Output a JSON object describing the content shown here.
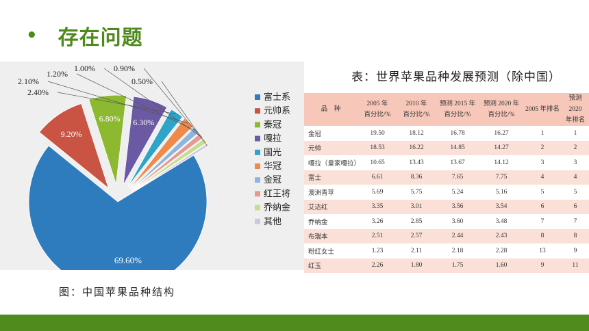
{
  "header": {
    "bullet": "•",
    "title": "存在问题"
  },
  "figure_caption": "图：中国苹果品种结构",
  "table_caption": "表：世界苹果品种发展预测（除中国）",
  "colors": {
    "title_green": "#4e8a1b",
    "footer_green": "#4f8b1d",
    "table_header_bg": "#f7c7ba",
    "table_alt_row_bg": "#fbe0d8"
  },
  "chart_data": {
    "type": "pie",
    "title": "",
    "legend_position": "right",
    "slices": [
      {
        "name": "富士系",
        "value": 69.6,
        "label": "69.60%",
        "color": "#2e7bbd"
      },
      {
        "name": "元帅系",
        "value": 9.2,
        "label": "9.20%",
        "color": "#c95443"
      },
      {
        "name": "秦冠",
        "value": 6.8,
        "label": "6.80%",
        "color": "#8db930"
      },
      {
        "name": "嘎拉",
        "value": 6.3,
        "label": "6.30%",
        "color": "#6c59a4"
      },
      {
        "name": "国光",
        "value": 2.4,
        "label": "2.40%",
        "color": "#2fa3c8"
      },
      {
        "name": "华冠",
        "value": 2.1,
        "label": "2.10%",
        "color": "#f08a4b"
      },
      {
        "name": "金冠",
        "value": 1.2,
        "label": "1.20%",
        "color": "#8fb4dd"
      },
      {
        "name": "红王将",
        "value": 1.0,
        "label": "1.00%",
        "color": "#e69a93"
      },
      {
        "name": "乔纳金",
        "value": 0.9,
        "label": "0.90%",
        "color": "#c7dd8e"
      },
      {
        "name": "其他",
        "value": 0.5,
        "label": "0.50%",
        "color": "#cfc6e0"
      }
    ]
  },
  "table": {
    "headers": [
      "品　种",
      "2005 年\n百分比/%",
      "2010 年\n百分比/%",
      "预测 2015 年\n百分比/%",
      "预测 2020 年\n百分比/%",
      "2005 年排名",
      "预测 2020\n年排名"
    ],
    "rows": [
      [
        "金冠",
        "19.50",
        "18.12",
        "16.78",
        "16.27",
        "1",
        "1"
      ],
      [
        "元帅",
        "18.53",
        "16.22",
        "14.85",
        "14.27",
        "2",
        "2"
      ],
      [
        "嘎拉（皇家嘎拉）",
        "10.65",
        "13.43",
        "13.67",
        "14.12",
        "3",
        "3"
      ],
      [
        "富士",
        "6.61",
        "8.36",
        "7.65",
        "7.75",
        "4",
        "4"
      ],
      [
        "澳洲青苹",
        "5.69",
        "5.75",
        "5.24",
        "5.16",
        "5",
        "5"
      ],
      [
        "艾达红",
        "3.35",
        "3.01",
        "3.56",
        "3.54",
        "6",
        "6"
      ],
      [
        "乔纳金",
        "3.26",
        "2.85",
        "3.60",
        "3.48",
        "7",
        "7"
      ],
      [
        "布瑞本",
        "2.51",
        "2.57",
        "2.44",
        "2.43",
        "8",
        "8"
      ],
      [
        "粉红女士",
        "1.23",
        "2.11",
        "2.18",
        "2.28",
        "13",
        "9"
      ],
      [
        "红玉",
        "2.26",
        "1.80",
        "1.75",
        "1.60",
        "9",
        "11"
      ]
    ]
  }
}
